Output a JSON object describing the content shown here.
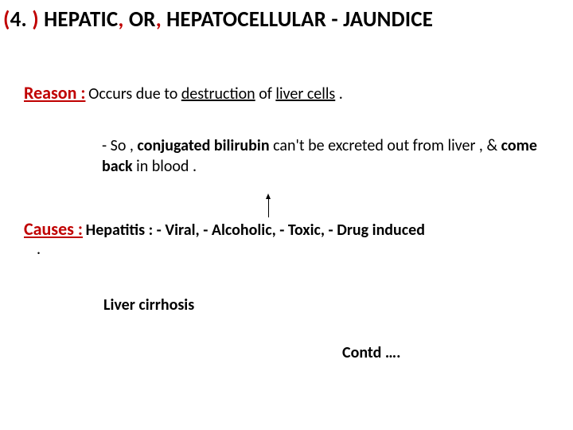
{
  "title": {
    "open_paren": "(",
    "num": "4. ",
    "close_paren": ")",
    "space": " ",
    "t1": "HEPATIC",
    "comma1": ",",
    "t2": " OR",
    "comma2": ",",
    "t3": " HEPATOCELLULAR - JAUNDICE"
  },
  "reason": {
    "label": "Reason :",
    "pre": "   Occurs due to ",
    "destruction": "destruction",
    "mid": " of ",
    "liver": "liver cells",
    "post": " ."
  },
  "so": {
    "dash": "-  So , ",
    "conj": "conjugated bilirubin",
    "mid": " can't be excreted  out from liver , & ",
    "comeback": "come back",
    "post": " in blood ."
  },
  "causes": {
    "label": "Causes :",
    "text": "  Hepatitis :   - Viral,   - Alcoholic,   - Toxic,   - Drug induced",
    "dot": "."
  },
  "cirrhosis": "Liver cirrhosis",
  "contd": "Contd …."
}
